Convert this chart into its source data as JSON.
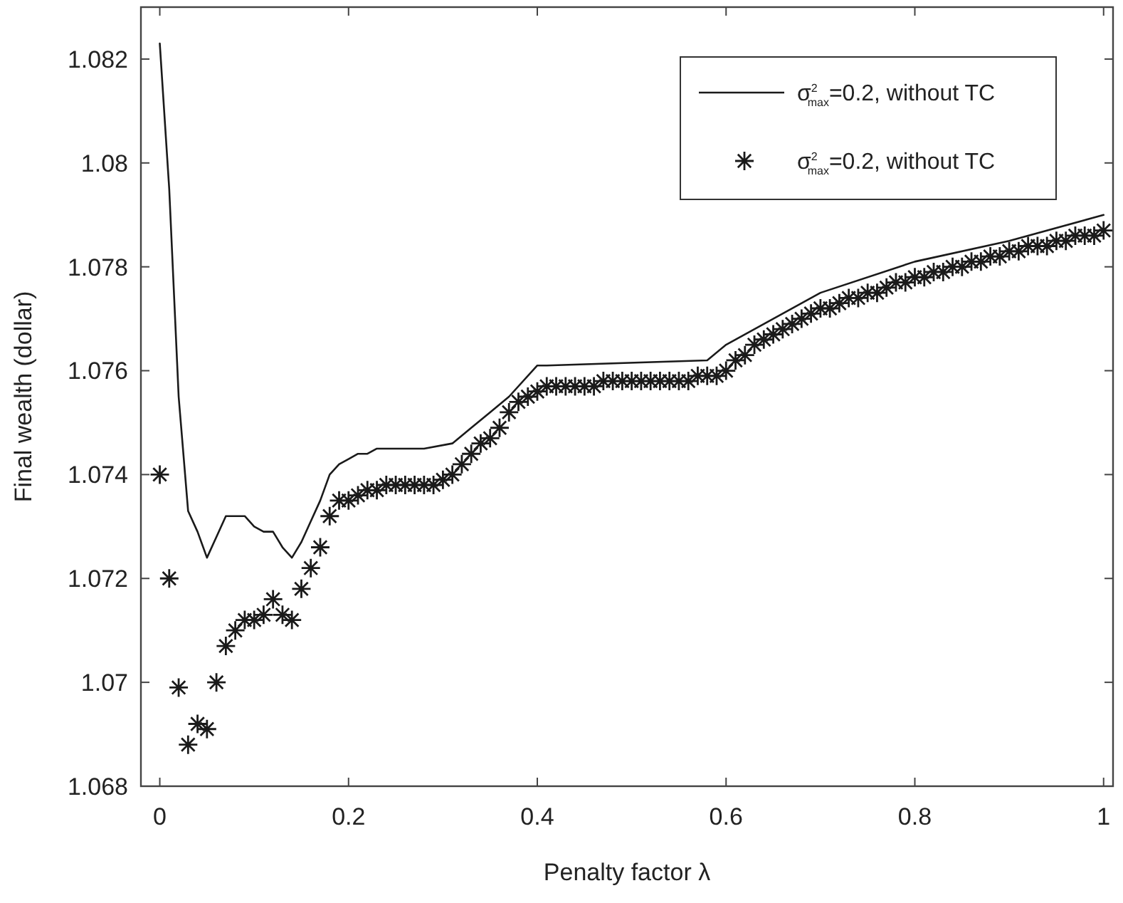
{
  "chart_data": {
    "type": "line",
    "xlabel": "Penalty factor λ",
    "ylabel": "Final wealth (dollar)",
    "xlim": [
      -0.02,
      1.01
    ],
    "ylim": [
      1.068,
      1.083
    ],
    "xticks": [
      0,
      0.2,
      0.4,
      0.6,
      0.8,
      1
    ],
    "yticks": [
      1.068,
      1.07,
      1.072,
      1.074,
      1.076,
      1.078,
      1.08,
      1.082
    ],
    "grid": false,
    "legend": "top right",
    "series": [
      {
        "name": "σ$^{2}$$_{max}$=0.2, without TC",
        "color": "#1a1a1a",
        "marker": "none",
        "line_style": "solid",
        "x": [
          0,
          0.01,
          0.02,
          0.03,
          0.04,
          0.05,
          0.06,
          0.07,
          0.08,
          0.09,
          0.1,
          0.11,
          0.12,
          0.13,
          0.14,
          0.15,
          0.16,
          0.17,
          0.18,
          0.19,
          0.2,
          0.21,
          0.22,
          0.23,
          0.28,
          0.31,
          0.33,
          0.35,
          0.37,
          0.4,
          0.41,
          0.58,
          0.6,
          0.7,
          0.8,
          0.9,
          1
        ],
        "values": [
          1.0823,
          1.0795,
          1.0755,
          1.0733,
          1.0729,
          1.0724,
          1.0728,
          1.0732,
          1.0732,
          1.0732,
          1.073,
          1.0729,
          1.0729,
          1.0726,
          1.0724,
          1.0727,
          1.0731,
          1.0735,
          1.074,
          1.0742,
          1.0743,
          1.0744,
          1.0744,
          1.0745,
          1.0745,
          1.0746,
          1.0749,
          1.0752,
          1.0755,
          1.0761,
          1.0761,
          1.0762,
          1.0765,
          1.0775,
          1.0781,
          1.0785,
          1.079
        ]
      },
      {
        "type": "scatter",
        "name": "σ$^{2}$$_{max}$=0.2, without TC",
        "color": "#1a1a1a",
        "marker": "cross",
        "x": [
          0,
          0.01,
          0.02,
          0.03,
          0.04,
          0.05,
          0.06,
          0.07,
          0.08,
          0.09,
          0.1,
          0.11,
          0.12,
          0.13,
          0.14,
          0.15,
          0.16,
          0.17,
          0.18,
          0.19,
          0.2,
          0.21,
          0.22,
          0.23,
          0.24,
          0.25,
          0.26,
          0.27,
          0.28,
          0.29,
          0.3,
          0.31,
          0.32,
          0.33,
          0.34,
          0.35,
          0.36,
          0.37,
          0.38,
          0.39,
          0.4,
          0.41,
          0.42,
          0.43,
          0.44,
          0.45,
          0.46,
          0.47,
          0.48,
          0.49,
          0.5,
          0.51,
          0.52,
          0.53,
          0.54,
          0.55,
          0.56,
          0.57,
          0.58,
          0.59,
          0.6,
          0.61,
          0.62,
          0.63,
          0.64,
          0.65,
          0.66,
          0.67,
          0.68,
          0.69,
          0.7,
          0.71,
          0.72,
          0.73,
          0.74,
          0.75,
          0.76,
          0.77,
          0.78,
          0.79,
          0.8,
          0.81,
          0.82,
          0.83,
          0.84,
          0.85,
          0.86,
          0.87,
          0.88,
          0.89,
          0.9,
          0.91,
          0.92,
          0.93,
          0.94,
          0.95,
          0.96,
          0.97,
          0.98,
          0.99,
          1
        ],
        "values": [
          1.074,
          1.072,
          1.0699,
          1.0688,
          1.0692,
          1.0691,
          1.07,
          1.0707,
          1.071,
          1.0712,
          1.0712,
          1.0713,
          1.0716,
          1.0713,
          1.0712,
          1.0718,
          1.0722,
          1.0726,
          1.0732,
          1.0735,
          1.0735,
          1.0736,
          1.0737,
          1.0737,
          1.0738,
          1.0738,
          1.0738,
          1.0738,
          1.0738,
          1.0738,
          1.0739,
          1.074,
          1.0742,
          1.0744,
          1.0746,
          1.0747,
          1.0749,
          1.0752,
          1.0754,
          1.0755,
          1.0756,
          1.0757,
          1.0757,
          1.0757,
          1.0757,
          1.0757,
          1.0757,
          1.0758,
          1.0758,
          1.0758,
          1.0758,
          1.0758,
          1.0758,
          1.0758,
          1.0758,
          1.0758,
          1.0758,
          1.0759,
          1.0759,
          1.0759,
          1.076,
          1.0762,
          1.0763,
          1.0765,
          1.0766,
          1.0767,
          1.0768,
          1.0769,
          1.077,
          1.0771,
          1.0772,
          1.0772,
          1.0773,
          1.0774,
          1.0774,
          1.0775,
          1.0775,
          1.0776,
          1.0777,
          1.0777,
          1.0778,
          1.0778,
          1.0779,
          1.0779,
          1.078,
          1.078,
          1.0781,
          1.0781,
          1.0782,
          1.0782,
          1.0783,
          1.0783,
          1.0784,
          1.0784,
          1.0784,
          1.0785,
          1.0785,
          1.0786,
          1.0786,
          1.0786,
          1.0787
        ]
      }
    ]
  }
}
